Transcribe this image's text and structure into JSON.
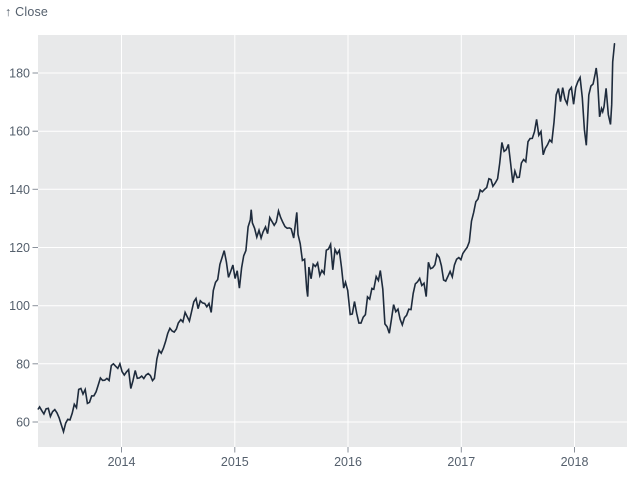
{
  "title": "Close price line chart",
  "header": {
    "y_axis_label": "↑ Close"
  },
  "colors": {
    "page_bg": "#ffffff",
    "plot_bg": "#e8e9ea",
    "grid": "#ffffff",
    "line": "#1e2b3c",
    "tick_label": "#55606d",
    "tick_mark": "#8a919b"
  },
  "chart_data": {
    "type": "line",
    "title": "",
    "xlabel": "",
    "ylabel": "Close",
    "ylabel_display": "↑ Close",
    "grid": true,
    "legend": "none",
    "x_axis": {
      "tick_years": [
        2014,
        2015,
        2016,
        2017,
        2018
      ],
      "range_shown": [
        "2013-04",
        "2018-06"
      ]
    },
    "y_axis": {
      "ticks": [
        60,
        80,
        100,
        120,
        140,
        160,
        180
      ],
      "range_shown": [
        54,
        192
      ]
    },
    "series": [
      {
        "name": "Close",
        "color": "#1e2b3c",
        "points": [
          [
            "2013-04-08",
            64.5
          ],
          [
            "2013-04-12",
            65.2
          ],
          [
            "2013-04-19",
            63.9
          ],
          [
            "2013-04-26",
            62.8
          ],
          [
            "2013-05-03",
            64.55
          ],
          [
            "2013-05-10",
            64.71
          ],
          [
            "2013-05-17",
            61.89
          ],
          [
            "2013-05-24",
            63.59
          ],
          [
            "2013-05-31",
            64.25
          ],
          [
            "2013-06-07",
            63.12
          ],
          [
            "2013-06-14",
            61.44
          ],
          [
            "2013-06-21",
            59.07
          ],
          [
            "2013-06-28",
            56.65
          ],
          [
            "2013-07-05",
            59.63
          ],
          [
            "2013-07-12",
            60.93
          ],
          [
            "2013-07-19",
            60.71
          ],
          [
            "2013-07-26",
            62.99
          ],
          [
            "2013-08-02",
            66.08
          ],
          [
            "2013-08-09",
            64.92
          ],
          [
            "2013-08-16",
            71.21
          ],
          [
            "2013-08-23",
            71.57
          ],
          [
            "2013-08-30",
            69.6
          ],
          [
            "2013-09-06",
            71.17
          ],
          [
            "2013-09-13",
            66.41
          ],
          [
            "2013-09-20",
            66.77
          ],
          [
            "2013-09-27",
            68.96
          ],
          [
            "2013-10-04",
            69.0
          ],
          [
            "2013-10-11",
            70.4
          ],
          [
            "2013-10-18",
            72.7
          ],
          [
            "2013-10-25",
            75.14
          ],
          [
            "2013-11-01",
            74.29
          ],
          [
            "2013-11-08",
            74.37
          ],
          [
            "2013-11-15",
            74.99
          ],
          [
            "2013-11-22",
            74.26
          ],
          [
            "2013-11-29",
            79.44
          ],
          [
            "2013-12-06",
            80.0
          ],
          [
            "2013-12-13",
            79.2
          ],
          [
            "2013-12-20",
            78.43
          ],
          [
            "2013-12-27",
            80.01
          ],
          [
            "2014-01-03",
            77.28
          ],
          [
            "2014-01-10",
            76.13
          ],
          [
            "2014-01-17",
            77.24
          ],
          [
            "2014-01-24",
            78.01
          ],
          [
            "2014-01-31",
            71.51
          ],
          [
            "2014-02-07",
            74.24
          ],
          [
            "2014-02-14",
            77.71
          ],
          [
            "2014-02-21",
            75.04
          ],
          [
            "2014-02-28",
            75.18
          ],
          [
            "2014-03-07",
            75.77
          ],
          [
            "2014-03-14",
            74.96
          ],
          [
            "2014-03-21",
            76.12
          ],
          [
            "2014-03-28",
            76.69
          ],
          [
            "2014-04-04",
            75.97
          ],
          [
            "2014-04-11",
            74.23
          ],
          [
            "2014-04-17",
            74.99
          ],
          [
            "2014-04-25",
            81.71
          ],
          [
            "2014-05-02",
            84.65
          ],
          [
            "2014-05-09",
            83.65
          ],
          [
            "2014-05-16",
            85.36
          ],
          [
            "2014-05-23",
            87.73
          ],
          [
            "2014-05-30",
            90.43
          ],
          [
            "2014-06-06",
            92.22
          ],
          [
            "2014-06-13",
            91.28
          ],
          [
            "2014-06-20",
            90.91
          ],
          [
            "2014-06-27",
            91.98
          ],
          [
            "2014-07-03",
            94.03
          ],
          [
            "2014-07-11",
            95.22
          ],
          [
            "2014-07-18",
            94.43
          ],
          [
            "2014-07-25",
            97.67
          ],
          [
            "2014-08-01",
            96.13
          ],
          [
            "2014-08-08",
            94.74
          ],
          [
            "2014-08-15",
            97.98
          ],
          [
            "2014-08-22",
            101.32
          ],
          [
            "2014-08-29",
            102.5
          ],
          [
            "2014-09-05",
            98.97
          ],
          [
            "2014-09-12",
            101.66
          ],
          [
            "2014-09-19",
            100.96
          ],
          [
            "2014-09-26",
            100.75
          ],
          [
            "2014-10-03",
            99.62
          ],
          [
            "2014-10-10",
            100.73
          ],
          [
            "2014-10-17",
            97.67
          ],
          [
            "2014-10-24",
            105.22
          ],
          [
            "2014-10-31",
            108.0
          ],
          [
            "2014-11-07",
            109.01
          ],
          [
            "2014-11-14",
            114.18
          ],
          [
            "2014-11-21",
            116.47
          ],
          [
            "2014-11-28",
            118.93
          ],
          [
            "2014-12-05",
            115.0
          ],
          [
            "2014-12-12",
            109.73
          ],
          [
            "2014-12-19",
            111.78
          ],
          [
            "2014-12-26",
            113.99
          ],
          [
            "2015-01-02",
            109.33
          ],
          [
            "2015-01-09",
            112.01
          ],
          [
            "2015-01-16",
            105.99
          ],
          [
            "2015-01-23",
            112.98
          ],
          [
            "2015-01-30",
            117.16
          ],
          [
            "2015-02-06",
            118.93
          ],
          [
            "2015-02-13",
            127.08
          ],
          [
            "2015-02-20",
            129.5
          ],
          [
            "2015-02-23",
            133.0
          ],
          [
            "2015-02-27",
            128.46
          ],
          [
            "2015-03-06",
            126.6
          ],
          [
            "2015-03-13",
            123.59
          ],
          [
            "2015-03-20",
            125.9
          ],
          [
            "2015-03-27",
            123.25
          ],
          [
            "2015-04-02",
            125.32
          ],
          [
            "2015-04-10",
            127.1
          ],
          [
            "2015-04-17",
            124.75
          ],
          [
            "2015-04-24",
            130.28
          ],
          [
            "2015-05-01",
            128.95
          ],
          [
            "2015-05-08",
            127.62
          ],
          [
            "2015-05-15",
            128.77
          ],
          [
            "2015-05-22",
            132.54
          ],
          [
            "2015-05-29",
            130.28
          ],
          [
            "2015-06-05",
            128.65
          ],
          [
            "2015-06-12",
            127.17
          ],
          [
            "2015-06-19",
            126.6
          ],
          [
            "2015-06-26",
            126.75
          ],
          [
            "2015-07-02",
            126.44
          ],
          [
            "2015-07-10",
            123.28
          ],
          [
            "2015-07-17",
            129.62
          ],
          [
            "2015-07-20",
            132.07
          ],
          [
            "2015-07-24",
            124.5
          ],
          [
            "2015-07-31",
            121.3
          ],
          [
            "2015-08-07",
            115.52
          ],
          [
            "2015-08-14",
            115.96
          ],
          [
            "2015-08-21",
            105.76
          ],
          [
            "2015-08-24",
            103.12
          ],
          [
            "2015-08-28",
            113.29
          ],
          [
            "2015-09-04",
            109.27
          ],
          [
            "2015-09-11",
            114.21
          ],
          [
            "2015-09-18",
            113.45
          ],
          [
            "2015-09-25",
            114.71
          ],
          [
            "2015-10-02",
            110.38
          ],
          [
            "2015-10-09",
            112.12
          ],
          [
            "2015-10-16",
            111.04
          ],
          [
            "2015-10-23",
            119.08
          ],
          [
            "2015-10-30",
            119.5
          ],
          [
            "2015-11-06",
            121.06
          ],
          [
            "2015-11-13",
            112.34
          ],
          [
            "2015-11-20",
            119.3
          ],
          [
            "2015-11-27",
            117.81
          ],
          [
            "2015-12-04",
            119.03
          ],
          [
            "2015-12-11",
            113.18
          ],
          [
            "2015-12-18",
            106.03
          ],
          [
            "2015-12-24",
            108.03
          ],
          [
            "2015-12-31",
            105.26
          ],
          [
            "2016-01-08",
            96.96
          ],
          [
            "2016-01-15",
            97.13
          ],
          [
            "2016-01-22",
            101.42
          ],
          [
            "2016-01-29",
            97.34
          ],
          [
            "2016-02-05",
            94.02
          ],
          [
            "2016-02-12",
            93.99
          ],
          [
            "2016-02-19",
            96.04
          ],
          [
            "2016-02-26",
            96.91
          ],
          [
            "2016-03-04",
            103.01
          ],
          [
            "2016-03-11",
            102.26
          ],
          [
            "2016-03-18",
            105.92
          ],
          [
            "2016-03-24",
            105.67
          ],
          [
            "2016-04-01",
            109.99
          ],
          [
            "2016-04-08",
            108.66
          ],
          [
            "2016-04-14",
            112.1
          ],
          [
            "2016-04-22",
            105.68
          ],
          [
            "2016-04-29",
            93.74
          ],
          [
            "2016-05-06",
            92.72
          ],
          [
            "2016-05-13",
            90.52
          ],
          [
            "2016-05-20",
            95.22
          ],
          [
            "2016-05-27",
            100.35
          ],
          [
            "2016-06-03",
            97.92
          ],
          [
            "2016-06-10",
            98.83
          ],
          [
            "2016-06-17",
            95.33
          ],
          [
            "2016-06-24",
            93.4
          ],
          [
            "2016-07-01",
            95.89
          ],
          [
            "2016-07-08",
            96.68
          ],
          [
            "2016-07-15",
            98.78
          ],
          [
            "2016-07-22",
            98.66
          ],
          [
            "2016-07-29",
            104.21
          ],
          [
            "2016-08-05",
            107.48
          ],
          [
            "2016-08-12",
            108.18
          ],
          [
            "2016-08-19",
            109.36
          ],
          [
            "2016-08-26",
            106.94
          ],
          [
            "2016-09-02",
            107.73
          ],
          [
            "2016-09-09",
            103.13
          ],
          [
            "2016-09-16",
            114.92
          ],
          [
            "2016-09-23",
            112.71
          ],
          [
            "2016-09-30",
            113.05
          ],
          [
            "2016-10-07",
            114.06
          ],
          [
            "2016-10-14",
            117.63
          ],
          [
            "2016-10-21",
            116.6
          ],
          [
            "2016-10-28",
            113.72
          ],
          [
            "2016-11-04",
            108.84
          ],
          [
            "2016-11-11",
            108.43
          ],
          [
            "2016-11-18",
            110.06
          ],
          [
            "2016-11-25",
            111.79
          ],
          [
            "2016-12-02",
            109.9
          ],
          [
            "2016-12-09",
            113.95
          ],
          [
            "2016-12-16",
            115.97
          ],
          [
            "2016-12-23",
            116.52
          ],
          [
            "2016-12-30",
            115.82
          ],
          [
            "2017-01-06",
            117.91
          ],
          [
            "2017-01-13",
            119.04
          ],
          [
            "2017-01-20",
            120.0
          ],
          [
            "2017-01-27",
            121.95
          ],
          [
            "2017-02-03",
            129.08
          ],
          [
            "2017-02-10",
            132.12
          ],
          [
            "2017-02-17",
            135.72
          ],
          [
            "2017-02-24",
            136.66
          ],
          [
            "2017-03-03",
            139.78
          ],
          [
            "2017-03-10",
            139.14
          ],
          [
            "2017-03-17",
            139.99
          ],
          [
            "2017-03-24",
            140.64
          ],
          [
            "2017-03-31",
            143.66
          ],
          [
            "2017-04-07",
            143.34
          ],
          [
            "2017-04-13",
            141.05
          ],
          [
            "2017-04-21",
            142.27
          ],
          [
            "2017-04-28",
            143.65
          ],
          [
            "2017-05-05",
            148.96
          ],
          [
            "2017-05-12",
            156.1
          ],
          [
            "2017-05-19",
            153.06
          ],
          [
            "2017-05-26",
            153.61
          ],
          [
            "2017-06-02",
            155.45
          ],
          [
            "2017-06-09",
            148.98
          ],
          [
            "2017-06-16",
            142.27
          ],
          [
            "2017-06-23",
            146.28
          ],
          [
            "2017-06-30",
            144.02
          ],
          [
            "2017-07-07",
            144.18
          ],
          [
            "2017-07-14",
            149.04
          ],
          [
            "2017-07-21",
            150.27
          ],
          [
            "2017-07-28",
            149.5
          ],
          [
            "2017-08-04",
            156.39
          ],
          [
            "2017-08-11",
            157.48
          ],
          [
            "2017-08-18",
            157.5
          ],
          [
            "2017-08-25",
            159.86
          ],
          [
            "2017-09-01",
            164.05
          ],
          [
            "2017-09-08",
            158.63
          ],
          [
            "2017-09-15",
            159.88
          ],
          [
            "2017-09-22",
            151.89
          ],
          [
            "2017-09-29",
            154.12
          ],
          [
            "2017-10-06",
            155.3
          ],
          [
            "2017-10-13",
            156.99
          ],
          [
            "2017-10-20",
            156.25
          ],
          [
            "2017-10-27",
            163.05
          ],
          [
            "2017-11-03",
            172.5
          ],
          [
            "2017-11-10",
            174.67
          ],
          [
            "2017-11-17",
            170.15
          ],
          [
            "2017-11-24",
            174.97
          ],
          [
            "2017-12-01",
            171.05
          ],
          [
            "2017-12-08",
            169.37
          ],
          [
            "2017-12-15",
            173.97
          ],
          [
            "2017-12-22",
            175.01
          ],
          [
            "2017-12-29",
            169.23
          ],
          [
            "2018-01-05",
            175.0
          ],
          [
            "2018-01-12",
            177.09
          ],
          [
            "2018-01-19",
            178.46
          ],
          [
            "2018-01-26",
            171.51
          ],
          [
            "2018-02-02",
            160.5
          ],
          [
            "2018-02-08",
            155.15
          ],
          [
            "2018-02-16",
            172.43
          ],
          [
            "2018-02-23",
            175.5
          ],
          [
            "2018-03-02",
            176.21
          ],
          [
            "2018-03-09",
            179.98
          ],
          [
            "2018-03-12",
            181.72
          ],
          [
            "2018-03-16",
            178.02
          ],
          [
            "2018-03-23",
            164.94
          ],
          [
            "2018-03-29",
            167.78
          ],
          [
            "2018-04-02",
            166.68
          ],
          [
            "2018-04-06",
            168.38
          ],
          [
            "2018-04-13",
            174.73
          ],
          [
            "2018-04-20",
            165.72
          ],
          [
            "2018-04-27",
            162.32
          ],
          [
            "2018-05-01",
            169.1
          ],
          [
            "2018-05-04",
            183.83
          ],
          [
            "2018-05-10",
            190.04
          ]
        ]
      }
    ]
  }
}
